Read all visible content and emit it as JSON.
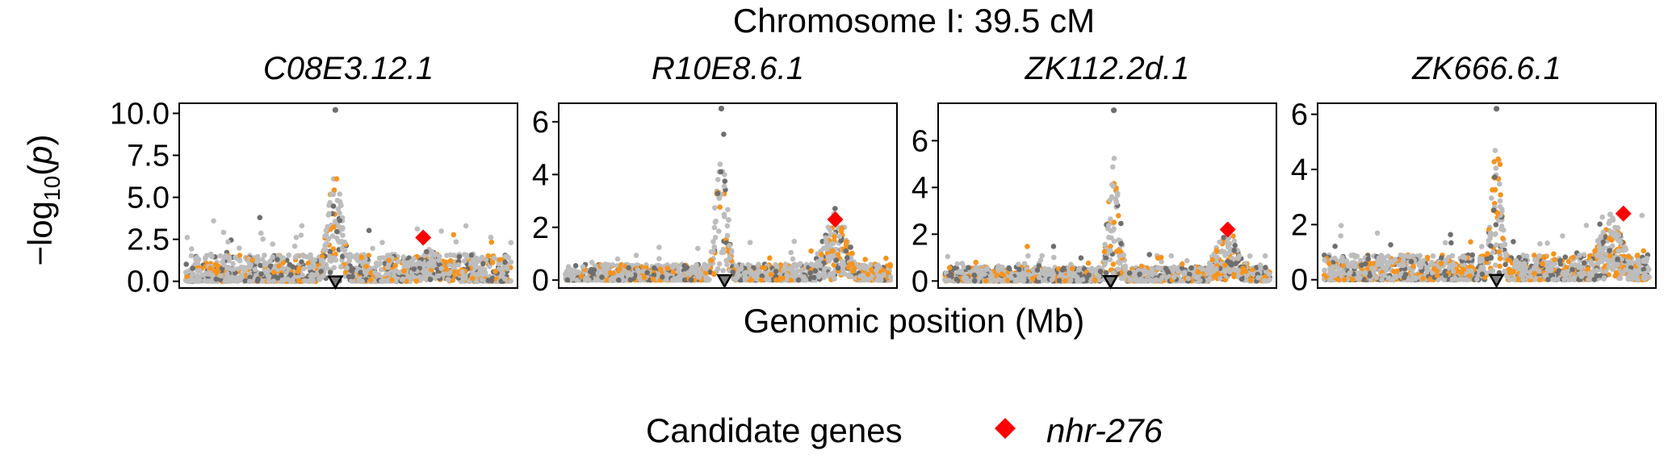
{
  "title": "Chromosome I: 39.5 cM",
  "xlabel": "Genomic position (Mb)",
  "ylabel": "-log10(p)",
  "legend": {
    "title": "Candidate genes",
    "gene": "nhr-276",
    "color": "#ff0000"
  },
  "colors": {
    "grey_light": "#bdbdbd",
    "grey_dark": "#6e6e6e",
    "orange": "#f7941d",
    "candidate": "#ff0000"
  },
  "chart_data": [
    {
      "type": "scatter",
      "facet": "C08E3.12.1",
      "ylim": [
        -0.4,
        10.6
      ],
      "yticks": [
        0,
        2.5,
        5,
        7.5,
        10
      ],
      "ytick_labels": [
        "0.0",
        "2.5",
        "5.0",
        "7.5",
        "10.0"
      ],
      "peak_x": 0.46,
      "peak_width": 0.05,
      "peak_height": 7.5,
      "second_x": 0.75,
      "second_height": 2.0,
      "baseline": 1.6,
      "max_point": 10.2,
      "candidate": {
        "x": 0.73,
        "y": 2.6
      },
      "marker_x": 0.46
    },
    {
      "type": "scatter",
      "facet": "R10E8.6.1",
      "ylim": [
        -0.3,
        6.7
      ],
      "yticks": [
        0,
        2,
        4,
        6
      ],
      "ytick_labels": [
        "0",
        "2",
        "4",
        "6"
      ],
      "peak_x": 0.48,
      "peak_width": 0.04,
      "peak_height": 5.5,
      "second_x": 0.83,
      "second_height": 2.8,
      "baseline": 0.6,
      "max_point": 6.5,
      "candidate": {
        "x": 0.83,
        "y": 2.3
      },
      "marker_x": 0.49
    },
    {
      "type": "scatter",
      "facet": "ZK112.2d.1",
      "ylim": [
        -0.3,
        7.6
      ],
      "yticks": [
        0,
        2,
        4,
        6
      ],
      "ytick_labels": [
        "0",
        "2",
        "4",
        "6"
      ],
      "peak_x": 0.52,
      "peak_width": 0.04,
      "peak_height": 5.5,
      "second_x": 0.87,
      "second_height": 2.4,
      "baseline": 0.6,
      "max_point": 7.3,
      "candidate": {
        "x": 0.87,
        "y": 2.2
      },
      "marker_x": 0.51
    },
    {
      "type": "scatter",
      "facet": "ZK666.6.1",
      "ylim": [
        -0.3,
        6.4
      ],
      "yticks": [
        0,
        2,
        4,
        6
      ],
      "ytick_labels": [
        "0",
        "2",
        "4",
        "6"
      ],
      "peak_x": 0.53,
      "peak_width": 0.035,
      "peak_height": 5.4,
      "second_x": 0.88,
      "second_height": 2.6,
      "baseline": 0.9,
      "max_point": 6.2,
      "candidate": {
        "x": 0.92,
        "y": 2.4
      },
      "marker_x": 0.53
    }
  ]
}
